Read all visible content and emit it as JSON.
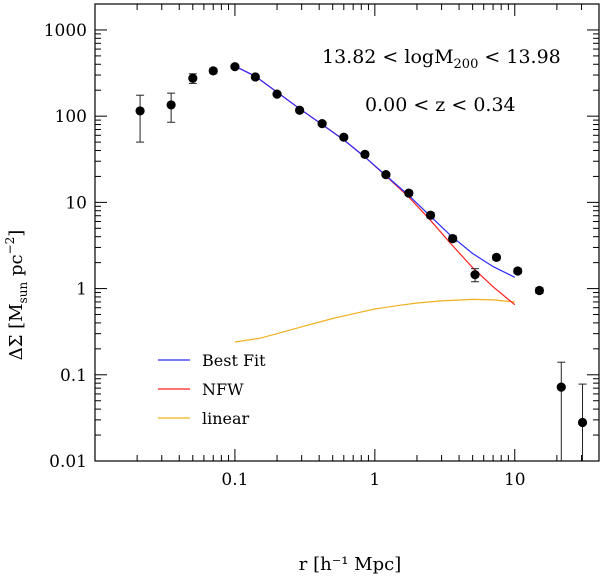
{
  "chart_data": {
    "type": "scatter",
    "xscale": "log",
    "yscale": "log",
    "xlim": [
      0.01,
      40
    ],
    "ylim": [
      0.01,
      2000
    ],
    "xticks": [
      {
        "value": 0.1,
        "label": "0.1"
      },
      {
        "value": 1,
        "label": "1"
      },
      {
        "value": 10,
        "label": "10"
      }
    ],
    "yticks": [
      {
        "value": 0.01,
        "label": "0.01"
      },
      {
        "value": 0.1,
        "label": "0.1"
      },
      {
        "value": 1,
        "label": "1"
      },
      {
        "value": 10,
        "label": "10"
      },
      {
        "value": 100,
        "label": "100"
      },
      {
        "value": 1000,
        "label": "1000"
      }
    ],
    "xlabel": "r [h⁻¹ Mpc]",
    "ylabel": "ΔΣ [M",
    "ylabel_sub": "sun",
    "ylabel_tail": " pc",
    "ylabel_sup": "−2",
    "ylabel_close": "]",
    "annotations": {
      "mass_range_left": "13.82 < logM",
      "mass_range_sub": "200",
      "mass_range_right": " < 13.98",
      "redshift_range": "0.00 < z < 0.34"
    },
    "legend": {
      "placement": "bottom-left",
      "entries": [
        {
          "label": "Best Fit",
          "color": "#2b2bff"
        },
        {
          "label": "NFW",
          "color": "#ff2020"
        },
        {
          "label": "linear",
          "color": "#f0b020"
        }
      ]
    },
    "data_points": [
      {
        "x": 0.021,
        "y": 115,
        "ylo": 50,
        "yhi": 175
      },
      {
        "x": 0.035,
        "y": 135,
        "ylo": 85,
        "yhi": 185
      },
      {
        "x": 0.05,
        "y": 275,
        "ylo": 240,
        "yhi": 310
      },
      {
        "x": 0.07,
        "y": 335,
        "ylo": 315,
        "yhi": 355
      },
      {
        "x": 0.1,
        "y": 375,
        "ylo": 360,
        "yhi": 390
      },
      {
        "x": 0.14,
        "y": 285,
        "ylo": 272,
        "yhi": 298
      },
      {
        "x": 0.2,
        "y": 180,
        "ylo": 172,
        "yhi": 188
      },
      {
        "x": 0.29,
        "y": 117,
        "ylo": 111,
        "yhi": 123
      },
      {
        "x": 0.42,
        "y": 82,
        "ylo": 78,
        "yhi": 86
      },
      {
        "x": 0.6,
        "y": 57,
        "ylo": 54,
        "yhi": 60
      },
      {
        "x": 0.85,
        "y": 36,
        "ylo": 34,
        "yhi": 38
      },
      {
        "x": 1.2,
        "y": 21,
        "ylo": 20,
        "yhi": 22
      },
      {
        "x": 1.75,
        "y": 12.8,
        "ylo": 12,
        "yhi": 13.6
      },
      {
        "x": 2.5,
        "y": 7.1,
        "ylo": 6.6,
        "yhi": 7.6
      },
      {
        "x": 3.6,
        "y": 3.8,
        "ylo": 3.5,
        "yhi": 4.1
      },
      {
        "x": 5.2,
        "y": 1.45,
        "ylo": 1.2,
        "yhi": 1.7
      },
      {
        "x": 7.4,
        "y": 2.3,
        "ylo": 2.15,
        "yhi": 2.45
      },
      {
        "x": 10.5,
        "y": 1.6,
        "ylo": 1.5,
        "yhi": 1.7
      },
      {
        "x": 15,
        "y": 0.95,
        "ylo": 0.88,
        "yhi": 1.02
      },
      {
        "x": 21.5,
        "y": 0.072,
        "ylo": 0.01,
        "yhi": 0.14
      },
      {
        "x": 30.5,
        "y": 0.028,
        "ylo": 0.01,
        "yhi": 0.078
      }
    ],
    "series": [
      {
        "label": "Best Fit",
        "color": "#2b2bff",
        "x": [
          0.1,
          0.14,
          0.2,
          0.29,
          0.42,
          0.6,
          0.85,
          1.2,
          1.75,
          2.5,
          3.5,
          5,
          7,
          10
        ],
        "y": [
          380,
          290,
          190,
          122,
          80,
          53,
          33.5,
          20.5,
          12.0,
          6.9,
          4.1,
          2.55,
          1.8,
          1.35
        ]
      },
      {
        "label": "NFW",
        "color": "#ff2020",
        "x": [
          0.1,
          0.14,
          0.2,
          0.29,
          0.42,
          0.6,
          0.85,
          1.2,
          1.75,
          2.5,
          3.5,
          5,
          7,
          10
        ],
        "y": [
          380,
          290,
          190,
          122,
          80,
          53,
          33.5,
          20.3,
          11.5,
          6.2,
          3.3,
          1.75,
          1.05,
          0.65
        ]
      },
      {
        "label": "linear",
        "color": "#f0b020",
        "x": [
          0.1,
          0.15,
          0.2,
          0.3,
          0.5,
          0.7,
          1,
          1.5,
          2,
          3,
          5,
          7,
          10
        ],
        "y": [
          0.24,
          0.265,
          0.3,
          0.36,
          0.45,
          0.51,
          0.58,
          0.64,
          0.68,
          0.72,
          0.75,
          0.74,
          0.7
        ]
      }
    ]
  }
}
